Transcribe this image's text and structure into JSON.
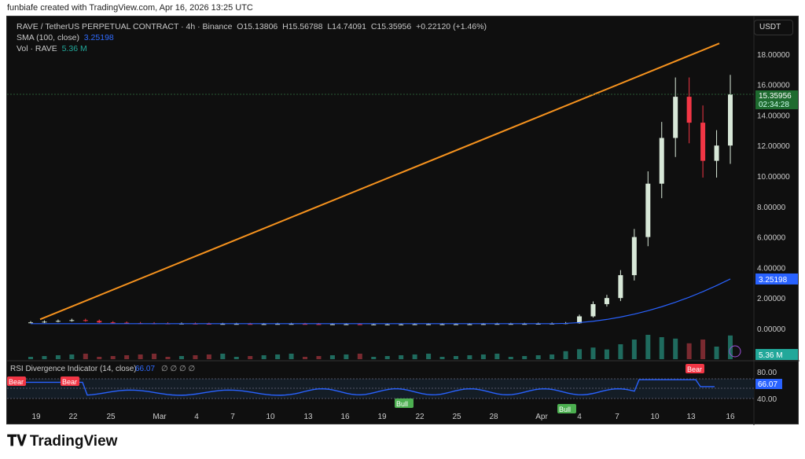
{
  "credit": "funbiafe created with TradingView.com, Apr 16, 2026 13:25 UTC",
  "legend": {
    "symbol": "RAVE / TetherUS PERPETUAL CONTRACT · 4h · Binance",
    "open": "O15.13806",
    "high": "H15.56788",
    "low": "L14.74091",
    "close": "C15.35956",
    "change": "+0.22120 (+1.46%)",
    "sma_label": "SMA (100, close)",
    "sma_value": "3.25198",
    "vol_label": "Vol · RAVE",
    "vol_value": "5.36 M"
  },
  "currency": "USDT",
  "price_axis": [
    "18.00000",
    "16.00000",
    "14.00000",
    "12.00000",
    "10.00000",
    "8.00000",
    "6.00000",
    "4.00000",
    "2.00000",
    "0.00000"
  ],
  "last_price": {
    "value": "15.35956",
    "countdown": "02:34:28",
    "color": "#1e6b2f"
  },
  "sma_badge": {
    "value": "3.25198",
    "color": "#2962ff"
  },
  "vol_badge": {
    "value": "5.36 M",
    "color": "#22a89a"
  },
  "rsi": {
    "label": "RSI Divergence Indicator (14, close)",
    "value": "66.07",
    "icons": "∅ ∅ ∅ ∅",
    "axis": [
      "80.00",
      "40.00"
    ],
    "signals": [
      {
        "text": "Bear",
        "type": "bear"
      },
      {
        "text": "Bear",
        "type": "bear"
      },
      {
        "text": "Bull",
        "type": "bull"
      },
      {
        "text": "Bull",
        "type": "bull"
      },
      {
        "text": "Bear",
        "type": "bear"
      }
    ]
  },
  "time_axis": [
    "19",
    "22",
    "25",
    "Mar",
    "4",
    "7",
    "10",
    "13",
    "16",
    "19",
    "22",
    "25",
    "28",
    "Apr",
    "4",
    "7",
    "10",
    "13",
    "16"
  ],
  "brand": "TradingView",
  "chart_data": {
    "type": "candlestick",
    "x_start_label": "19",
    "closes": [
      0.4,
      0.45,
      0.5,
      0.55,
      0.5,
      0.4,
      0.38,
      0.35,
      0.34,
      0.33,
      0.32,
      0.32,
      0.31,
      0.3,
      0.3,
      0.3,
      0.29,
      0.29,
      0.3,
      0.3,
      0.29,
      0.28,
      0.28,
      0.28,
      0.27,
      0.27,
      0.27,
      0.27,
      0.28,
      0.28,
      0.28,
      0.28,
      0.28,
      0.29,
      0.3,
      0.3,
      0.3,
      0.31,
      0.32,
      0.35,
      0.8,
      1.6,
      2.0,
      3.5,
      6.0,
      9.5,
      12.5,
      15.2,
      13.5,
      11.0,
      12.0,
      15.35956
    ],
    "trendline": [
      0.6,
      18.7
    ],
    "sma_end": 3.25198,
    "ylim": [
      0,
      19
    ]
  }
}
